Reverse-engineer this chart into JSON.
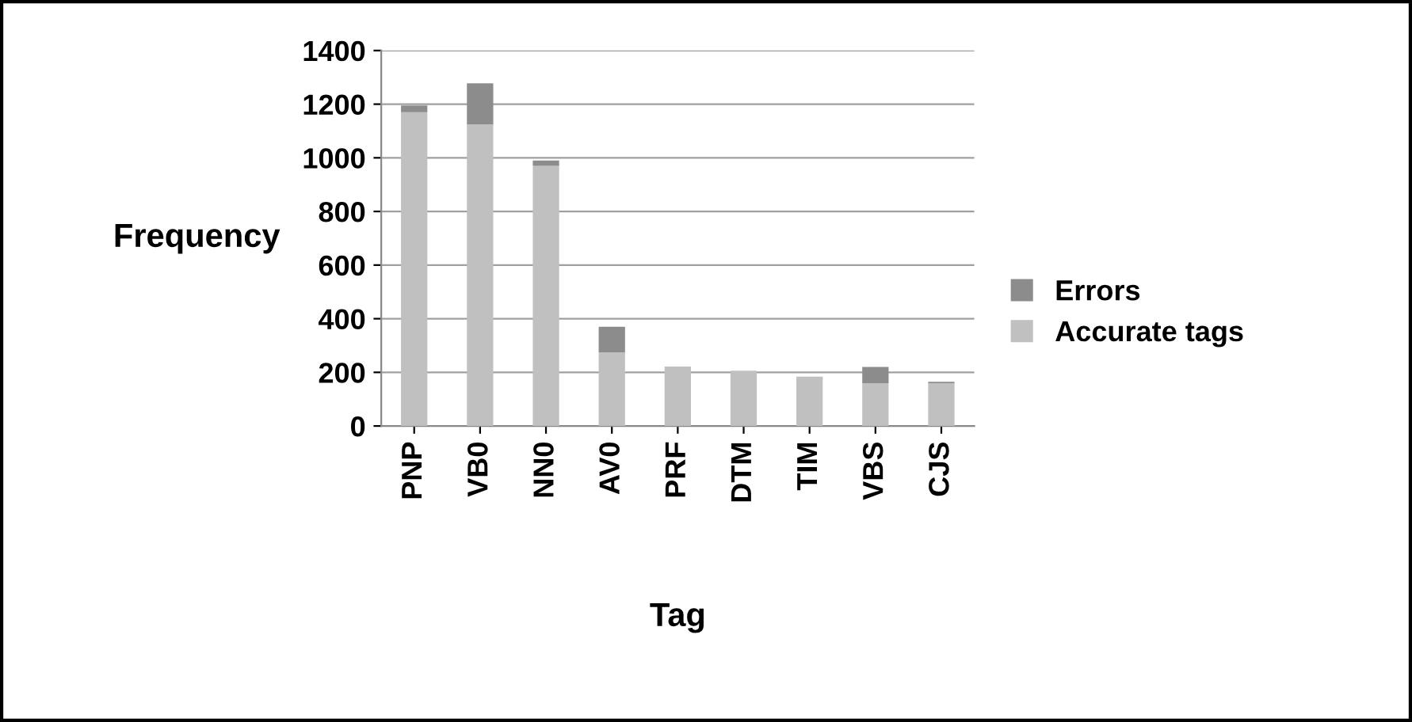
{
  "chart_data": {
    "type": "bar",
    "stacked": true,
    "xlabel": "Tag",
    "ylabel": "Frequency",
    "categories": [
      "PNP",
      "VB0",
      "NN0",
      "AV0",
      "PRF",
      "DTM",
      "TIM",
      "VBS",
      "CJS"
    ],
    "series": [
      {
        "name": "Accurate tags",
        "color": "#c0c0c0",
        "values": [
          1170,
          1124,
          970,
          274,
          222,
          206,
          184,
          160,
          160
        ]
      },
      {
        "name": "Errors",
        "color": "#8c8c8c",
        "values": [
          25,
          154,
          20,
          96,
          0,
          0,
          0,
          60,
          5
        ]
      }
    ],
    "ylim": [
      0,
      1400
    ],
    "yticks": [
      0,
      200,
      400,
      600,
      800,
      1000,
      1200,
      1400
    ],
    "grid": "y",
    "legend": "right"
  }
}
